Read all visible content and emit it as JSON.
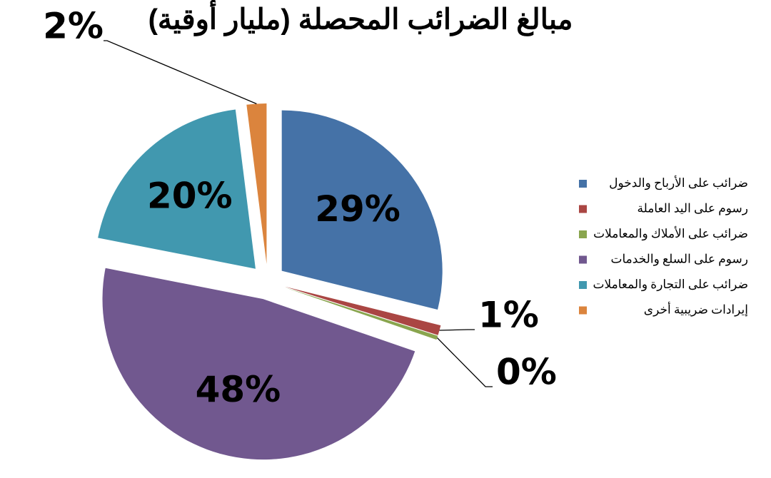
{
  "chart_data": {
    "type": "pie",
    "title": "مبالغ الضرائب المحصلة (مليار أوقية)",
    "categories": [
      "ضرائب على الأرباح والدخول",
      "رسوم على اليد العاملة",
      "ضرائب على الأملاك والمعاملات",
      "رسوم على السلع والخدمات",
      "ضرائب على التجارة والمعاملات",
      "إيرادات ضريبية أخرى"
    ],
    "values": [
      29,
      1,
      0.4,
      48,
      20,
      2
    ],
    "value_labels": [
      "29%",
      "1%",
      "0%",
      "48%",
      "20%",
      "2%"
    ],
    "colors": [
      "#4572a7",
      "#aa4643",
      "#89a54e",
      "#71588f",
      "#4198af",
      "#db843d"
    ],
    "legend": "right"
  }
}
